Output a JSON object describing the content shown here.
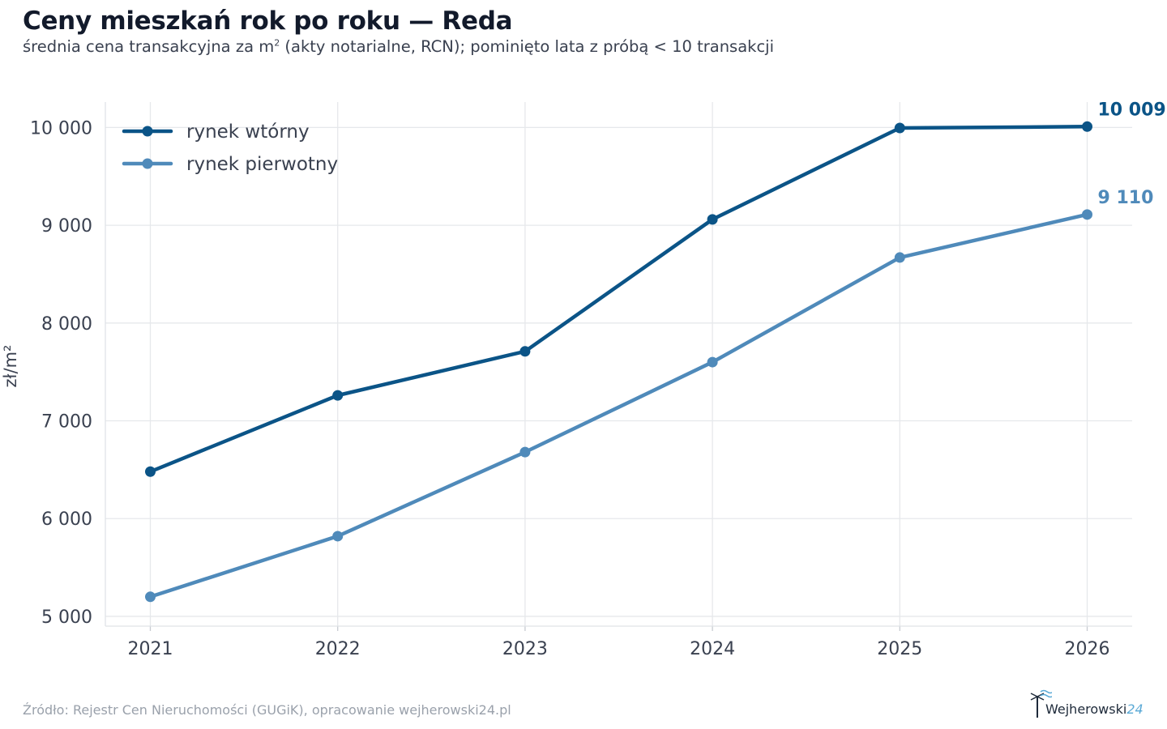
{
  "title": "Ceny mieszkań rok po roku — Reda",
  "subtitle_pre": "średnia cena transakcyjna za m",
  "subtitle_sup": "2",
  "subtitle_post": " (akty notarialne, RCN); pominięto lata z próbą < 10 transakcji",
  "source": "Źródło: Rejestr Cen Nieruchomości (GUGiK), opracowanie wejherowski24.pl",
  "logo": {
    "text": "Wejherowski",
    "suffix": "24"
  },
  "chart_data": {
    "type": "line",
    "x": [
      2021,
      2022,
      2023,
      2024,
      2025,
      2026
    ],
    "ylabel": "zł/m²",
    "ylim": [
      4900,
      10260
    ],
    "yticks": [
      5000,
      6000,
      7000,
      8000,
      9000,
      10000
    ],
    "ytick_labels": [
      "5 000",
      "6 000",
      "7 000",
      "8 000",
      "9 000",
      "10 000"
    ],
    "xtick_labels": [
      "2021",
      "2022",
      "2023",
      "2024",
      "2025",
      "2026"
    ],
    "grid": true,
    "legend_position": "top-left",
    "series": [
      {
        "name": "rynek wtórny",
        "color": "#0b5487",
        "values": [
          6480,
          7260,
          7710,
          9060,
          9995,
          10009
        ],
        "end_label": "10 009"
      },
      {
        "name": "rynek pierwotny",
        "color": "#4f8aba",
        "values": [
          5200,
          5820,
          6680,
          7600,
          8670,
          9110
        ],
        "end_label": "9 110"
      }
    ]
  }
}
